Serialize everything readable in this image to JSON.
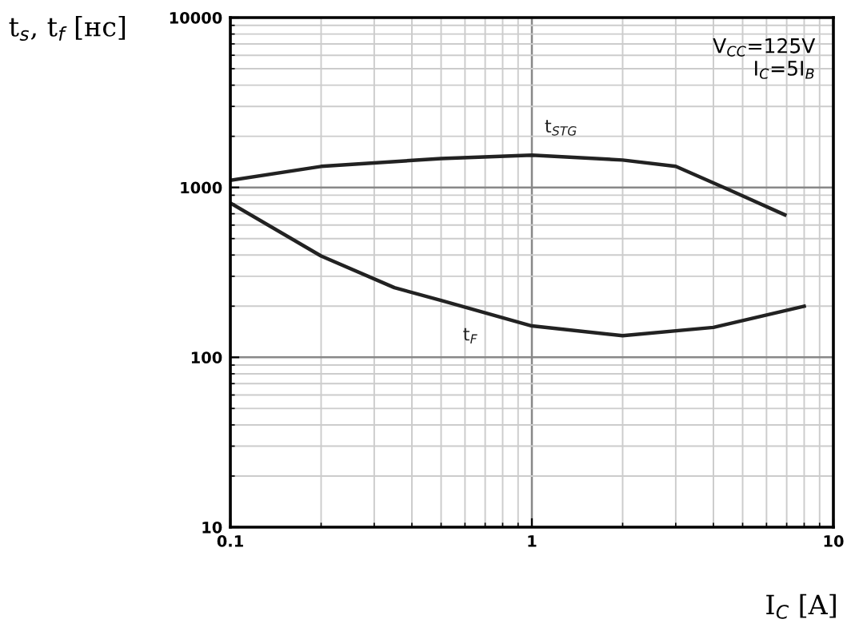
{
  "chart_data": {
    "type": "line",
    "log": "xy",
    "xlabel": "I$_{C}$ [A]",
    "ylabel": "t$_{s}$, t$_{f}$ [нс]",
    "xlim": [
      0.1,
      10
    ],
    "ylim": [
      10,
      10000
    ],
    "xticks": [
      0.1,
      1,
      10
    ],
    "yticks": [
      10,
      100,
      1000,
      10000
    ],
    "grid": true,
    "annotations": [
      "V$_{CC}$=125V\nI$_{C}$=5I$_{B}$"
    ],
    "series": [
      {
        "name": "t$_{STG}$",
        "color": "#222222",
        "x": [
          0.1,
          0.2,
          0.5,
          1,
          2,
          3,
          4.5,
          6.9
        ],
        "values": [
          1100,
          1330,
          1480,
          1550,
          1450,
          1330,
          970,
          690
        ]
      },
      {
        "name": "t$_{F}$",
        "color": "#222222",
        "x": [
          0.1,
          0.2,
          0.35,
          0.5,
          1,
          2,
          4,
          8
        ],
        "values": [
          810,
          395,
          257,
          216,
          153,
          134,
          150,
          200
        ]
      }
    ]
  }
}
